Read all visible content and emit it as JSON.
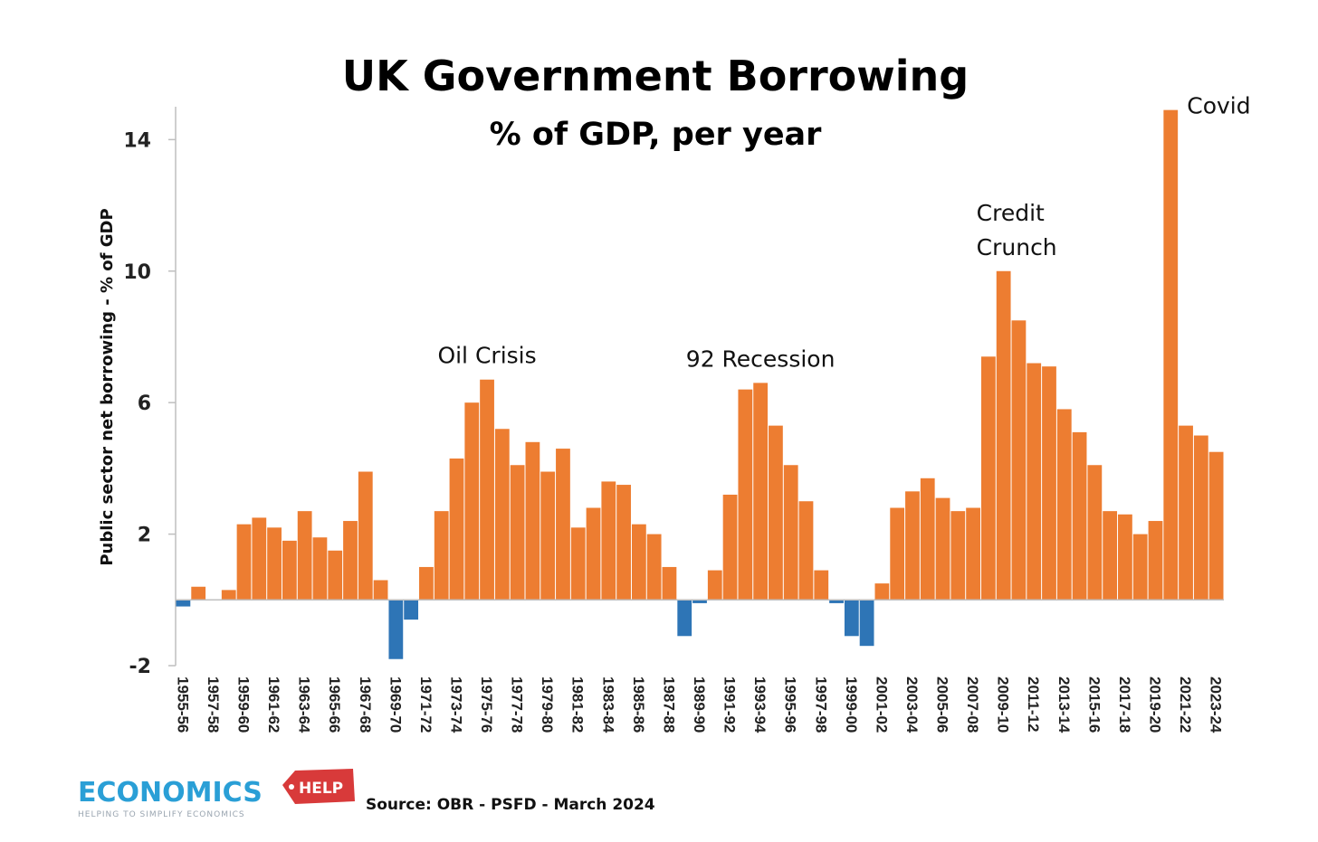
{
  "colors": {
    "positive": "#ed7d31",
    "negative": "#2e75b6",
    "axis": "#bfbfbf",
    "logo_blue": "#2a9fd6",
    "logo_red": "#d83a3a"
  },
  "chart_data": {
    "type": "bar",
    "title": "UK Government Borrowing",
    "subtitle": "% of GDP, per year",
    "xlabel": "",
    "ylabel": "Public sector net borrowing - % of GDP",
    "ylim": [
      -2,
      15
    ],
    "yticks": [
      -2,
      2,
      6,
      10,
      14
    ],
    "categories": [
      "1955-56",
      "1956-57",
      "1957-58",
      "1958-59",
      "1959-60",
      "1960-61",
      "1961-62",
      "1962-63",
      "1963-64",
      "1964-65",
      "1965-66",
      "1966-67",
      "1967-68",
      "1968-69",
      "1969-70",
      "1970-71",
      "1971-72",
      "1972-73",
      "1973-74",
      "1974-75",
      "1975-76",
      "1976-77",
      "1977-78",
      "1978-79",
      "1979-80",
      "1980-81",
      "1981-82",
      "1982-83",
      "1983-84",
      "1984-85",
      "1985-86",
      "1986-87",
      "1987-88",
      "1988-89",
      "1989-90",
      "1990-91",
      "1991-92",
      "1992-93",
      "1993-94",
      "1994-95",
      "1995-96",
      "1996-97",
      "1997-98",
      "1998-99",
      "1999-00",
      "2000-01",
      "2001-02",
      "2002-03",
      "2003-04",
      "2004-05",
      "2005-06",
      "2006-07",
      "2007-08",
      "2008-09",
      "2009-10",
      "2010-11",
      "2011-12",
      "2012-13",
      "2013-14",
      "2014-15",
      "2015-16",
      "2016-17",
      "2017-18",
      "2018-19",
      "2019-20",
      "2020-21",
      "2021-22",
      "2022-23",
      "2023-24"
    ],
    "tick_labels": [
      "1955-56",
      "1957-58",
      "1959-60",
      "1961-62",
      "1963-64",
      "1965-66",
      "1967-68",
      "1969-70",
      "1971-72",
      "1973-74",
      "1975-76",
      "1977-78",
      "1979-80",
      "1981-82",
      "1983-84",
      "1985-86",
      "1987-88",
      "1989-90",
      "1991-92",
      "1993-94",
      "1995-96",
      "1997-98",
      "1999-00",
      "2001-02",
      "2003-04",
      "2005-06",
      "2007-08",
      "2009-10",
      "2011-12",
      "2013-14",
      "2015-16",
      "2017-18",
      "2019-20",
      "2021-22",
      "2023-24"
    ],
    "values": [
      -0.2,
      0.4,
      0.0,
      0.3,
      2.3,
      2.5,
      2.2,
      1.8,
      2.7,
      1.9,
      1.5,
      2.4,
      3.9,
      0.6,
      -1.8,
      -0.6,
      1.0,
      2.7,
      4.3,
      6.0,
      6.7,
      5.2,
      4.1,
      4.8,
      3.9,
      4.6,
      2.2,
      2.8,
      3.6,
      3.5,
      2.3,
      2.0,
      1.0,
      -1.1,
      -0.1,
      0.9,
      3.2,
      6.4,
      6.6,
      5.3,
      4.1,
      3.0,
      0.9,
      -0.1,
      -1.1,
      -1.4,
      0.5,
      2.8,
      3.3,
      3.7,
      3.1,
      2.7,
      2.8,
      7.4,
      10.0,
      8.5,
      7.2,
      7.1,
      5.8,
      5.1,
      4.1,
      2.7,
      2.6,
      2.0,
      2.4,
      14.9,
      5.3,
      5.0,
      4.5
    ],
    "annotations": [
      {
        "lines": [
          "Oil Crisis"
        ],
        "category": "1975-76"
      },
      {
        "lines": [
          "92 Recession"
        ],
        "category": "1993-94"
      },
      {
        "lines": [
          "Credit",
          "Crunch"
        ],
        "category": "2009-10"
      },
      {
        "lines": [
          "Covid"
        ],
        "category": "2020-21"
      }
    ],
    "source": "Source: OBR - PSFD - March 2024"
  },
  "logo": {
    "text_main": "ECONOMICS",
    "text_help": "HELP",
    "tagline": "HELPING TO SIMPLIFY ECONOMICS"
  }
}
